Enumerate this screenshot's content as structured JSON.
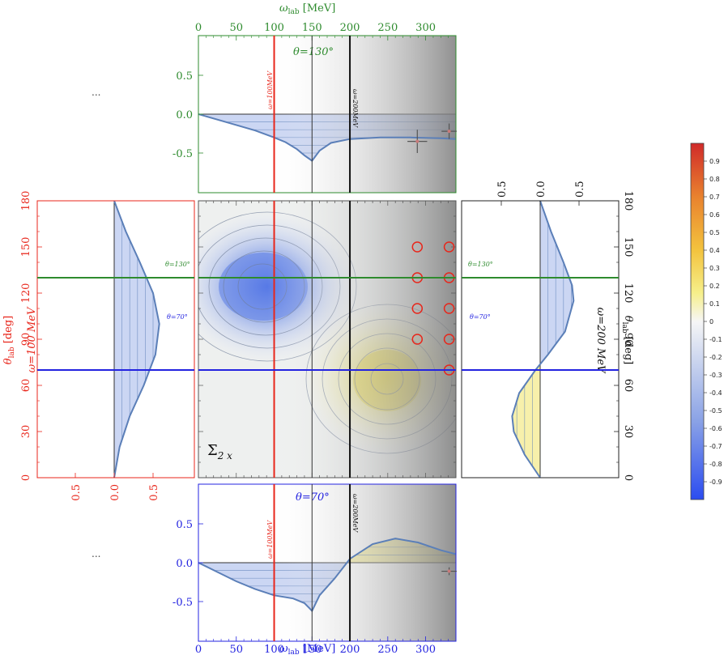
{
  "colors": {
    "green": "#2e8b2e",
    "red": "#e8261b",
    "blue": "#2323e0",
    "black": "#222222",
    "curve": "#5b7fb8",
    "neg": "#3b5fe0",
    "pos": "#f2e24a"
  },
  "labels": {
    "omega_top": "ω",
    "omega_sub": "lab",
    "omega_unit": " [MeV]",
    "theta_sym": "θ",
    "theta_sub": "lab",
    "theta_unit": " [deg]",
    "omega100": "ω=100 MeV",
    "omega200": "ω=200 MeV",
    "omega100_short": "ω=100MeV",
    "omega200_short": "ω=200MeV",
    "theta130_big": "θ=130°",
    "theta70_big": "θ=70°",
    "theta130_small": "θ=130°",
    "theta70_small": "θ=70°",
    "sigma_main": "Σ",
    "sigma_sub": "2 x",
    "ellipsis": "..."
  },
  "chart_data": {
    "type": "heatmap",
    "observable": "Σ2x",
    "omega_range": [
      0,
      340
    ],
    "theta_range": [
      0,
      180
    ],
    "omega_ticks": [
      0,
      50,
      100,
      150,
      200,
      250,
      300
    ],
    "theta_ticks": [
      0,
      30,
      60,
      90,
      120,
      150,
      180
    ],
    "value_ticks": [
      "-0.5",
      "0.0",
      "0.5"
    ],
    "side_ticks": [
      "0.5",
      "0.0",
      "0.5"
    ],
    "colorbar_ticks": [
      "0.9",
      "0.8",
      "0.7",
      "0.6",
      "0.5",
      "0.4",
      "0.3",
      "0.2",
      "0.1",
      "0",
      "-0.1",
      "-0.2",
      "-0.3",
      "-0.4",
      "-0.5",
      "-0.6",
      "-0.7",
      "-0.8",
      "-0.9"
    ],
    "colorbar_range": [
      -1,
      1
    ],
    "cut_lines": {
      "omega": [
        100,
        150,
        200
      ],
      "theta": [
        70,
        130
      ]
    },
    "data_points_markers": [
      {
        "omega": 289,
        "theta": 150
      },
      {
        "omega": 289,
        "theta": 130
      },
      {
        "omega": 289,
        "theta": 110
      },
      {
        "omega": 289,
        "theta": 90
      },
      {
        "omega": 331,
        "theta": 150
      },
      {
        "omega": 331,
        "theta": 130
      },
      {
        "omega": 331,
        "theta": 110
      },
      {
        "omega": 331,
        "theta": 90
      },
      {
        "omega": 331,
        "theta": 70
      }
    ],
    "panel_top_theta130": {
      "curve": [
        [
          0,
          0
        ],
        [
          25,
          -0.07
        ],
        [
          50,
          -0.14
        ],
        [
          75,
          -0.21
        ],
        [
          100,
          -0.3
        ],
        [
          115,
          -0.36
        ],
        [
          130,
          -0.45
        ],
        [
          140,
          -0.53
        ],
        [
          150,
          -0.6
        ],
        [
          160,
          -0.47
        ],
        [
          175,
          -0.37
        ],
        [
          200,
          -0.32
        ],
        [
          240,
          -0.3
        ],
        [
          280,
          -0.3
        ],
        [
          320,
          -0.31
        ],
        [
          340,
          -0.32
        ]
      ],
      "data": [
        {
          "omega": 289,
          "value": -0.35,
          "xerr": 13,
          "yerr": 0.15
        },
        {
          "omega": 331,
          "value": -0.22,
          "xerr": 10,
          "yerr": 0.1
        }
      ]
    },
    "panel_bottom_theta70": {
      "curve": [
        [
          0,
          0
        ],
        [
          25,
          -0.12
        ],
        [
          50,
          -0.24
        ],
        [
          75,
          -0.34
        ],
        [
          100,
          -0.42
        ],
        [
          125,
          -0.46
        ],
        [
          140,
          -0.52
        ],
        [
          150,
          -0.62
        ],
        [
          160,
          -0.42
        ],
        [
          180,
          -0.2
        ],
        [
          200,
          0.05
        ],
        [
          230,
          0.24
        ],
        [
          260,
          0.31
        ],
        [
          290,
          0.26
        ],
        [
          320,
          0.16
        ],
        [
          340,
          0.11
        ]
      ],
      "data": [
        {
          "omega": 331,
          "value": -0.11,
          "xerr": 10,
          "yerr": 0.05
        }
      ]
    },
    "panel_left_omega100": {
      "curve": [
        [
          0,
          0
        ],
        [
          20,
          0.07
        ],
        [
          40,
          0.2
        ],
        [
          60,
          0.38
        ],
        [
          80,
          0.53
        ],
        [
          100,
          0.58
        ],
        [
          120,
          0.5
        ],
        [
          140,
          0.33
        ],
        [
          160,
          0.15
        ],
        [
          180,
          0
        ]
      ]
    },
    "panel_right_omega200": {
      "curve": [
        [
          0,
          0
        ],
        [
          15,
          -0.2
        ],
        [
          30,
          -0.34
        ],
        [
          40,
          -0.36
        ],
        [
          55,
          -0.27
        ],
        [
          70,
          -0.06
        ],
        [
          80,
          0.1
        ],
        [
          95,
          0.32
        ],
        [
          115,
          0.43
        ],
        [
          125,
          0.41
        ],
        [
          140,
          0.3
        ],
        [
          160,
          0.14
        ],
        [
          180,
          0
        ]
      ]
    }
  }
}
